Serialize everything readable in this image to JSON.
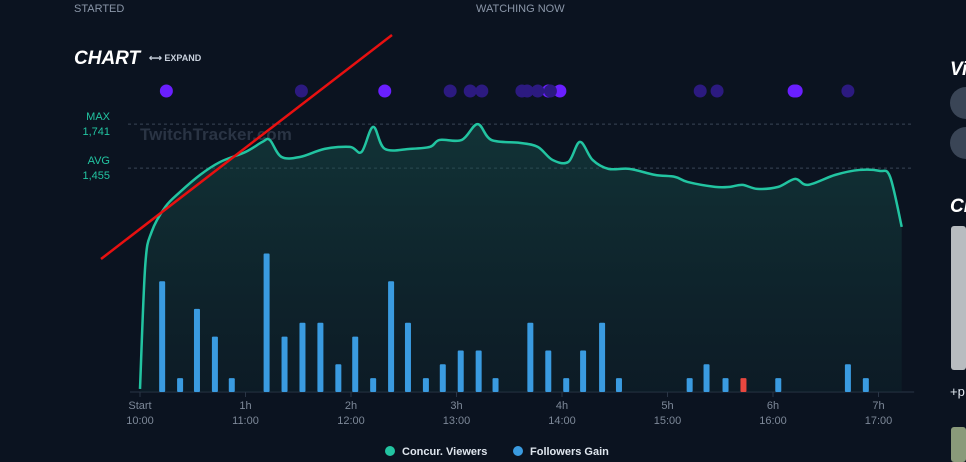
{
  "header": {
    "started": "STARTED",
    "watching_now": "WATCHING NOW"
  },
  "side": {
    "heading_1": "Vi",
    "heading_2": "Cl",
    "more": "+p"
  },
  "chart_data": {
    "type": "line-bar",
    "title": "CHART",
    "expand": "⟷ EXPAND",
    "watermark": "TwitchTracker.com",
    "xlim": [
      0,
      7.3
    ],
    "xticks": [
      {
        "value": 0,
        "label": "Start"
      },
      {
        "value": 1,
        "label": "1h"
      },
      {
        "value": 2,
        "label": "2h"
      },
      {
        "value": 3,
        "label": "3h"
      },
      {
        "value": 4,
        "label": "4h"
      },
      {
        "value": 5,
        "label": "5h"
      },
      {
        "value": 6,
        "label": "6h"
      },
      {
        "value": 7,
        "label": "7h"
      }
    ],
    "xtick_times": [
      "10:00",
      "11:00",
      "12:00",
      "13:00",
      "14:00",
      "15:00",
      "16:00",
      "17:00"
    ],
    "ylim": [
      0,
      1800
    ],
    "y2lim": [
      0,
      20
    ],
    "max": {
      "label": "MAX",
      "value": 1741,
      "value_label": "1,741"
    },
    "avg": {
      "label": "AVG",
      "value": 1455,
      "value_label": "1,455"
    },
    "series": [
      {
        "name": "Concur. Viewers",
        "color": "#22c4a1",
        "x": [
          0,
          0.05,
          0.11,
          0.24,
          0.38,
          0.57,
          0.76,
          1.0,
          1.16,
          1.23,
          1.34,
          1.52,
          1.75,
          1.99,
          2.1,
          2.21,
          2.32,
          2.56,
          2.75,
          2.84,
          3.05,
          3.2,
          3.33,
          3.6,
          3.77,
          3.91,
          4.06,
          4.17,
          4.29,
          4.44,
          4.64,
          4.88,
          5.07,
          5.19,
          5.45,
          5.59,
          5.71,
          5.85,
          6.05,
          6.21,
          6.33,
          6.59,
          6.82,
          7.01,
          7.11,
          7.22
        ],
        "values": [
          20,
          826,
          1040,
          1203,
          1300,
          1411,
          1495,
          1560,
          1625,
          1638,
          1528,
          1528,
          1580,
          1593,
          1560,
          1723,
          1580,
          1580,
          1593,
          1638,
          1638,
          1741,
          1638,
          1619,
          1593,
          1508,
          1495,
          1625,
          1508,
          1450,
          1450,
          1411,
          1398,
          1365,
          1333,
          1333,
          1346,
          1320,
          1333,
          1385,
          1346,
          1411,
          1443,
          1437,
          1398,
          1073
        ]
      },
      {
        "name": "Followers Gain",
        "color": "#3a9be0",
        "negative_color": "#e8473f",
        "axis": "y2",
        "x": [
          0.21,
          0.38,
          0.54,
          0.71,
          0.87,
          1.2,
          1.37,
          1.54,
          1.71,
          1.88,
          2.04,
          2.21,
          2.38,
          2.54,
          2.71,
          2.87,
          3.04,
          3.21,
          3.37,
          3.7,
          3.87,
          4.04,
          4.2,
          4.38,
          4.54,
          5.21,
          5.37,
          5.55,
          5.72,
          6.05,
          6.71,
          6.88
        ],
        "values": [
          8,
          1,
          6,
          4,
          1,
          10,
          4,
          5,
          5,
          2,
          4,
          1,
          8,
          5,
          1,
          2,
          3,
          3,
          1,
          5,
          3,
          1,
          3,
          5,
          1,
          1,
          2,
          1,
          -1,
          1,
          2,
          1
        ]
      }
    ],
    "event_series": [
      {
        "color": "#6a1fff",
        "x": [
          0.25,
          2.32,
          3.87,
          3.98,
          6.2,
          6.22
        ]
      },
      {
        "color": "#2c1a80",
        "x": [
          1.53,
          2.94,
          3.13,
          3.24,
          3.62,
          3.67,
          3.77,
          3.89,
          5.31,
          5.47,
          6.71
        ]
      }
    ]
  }
}
